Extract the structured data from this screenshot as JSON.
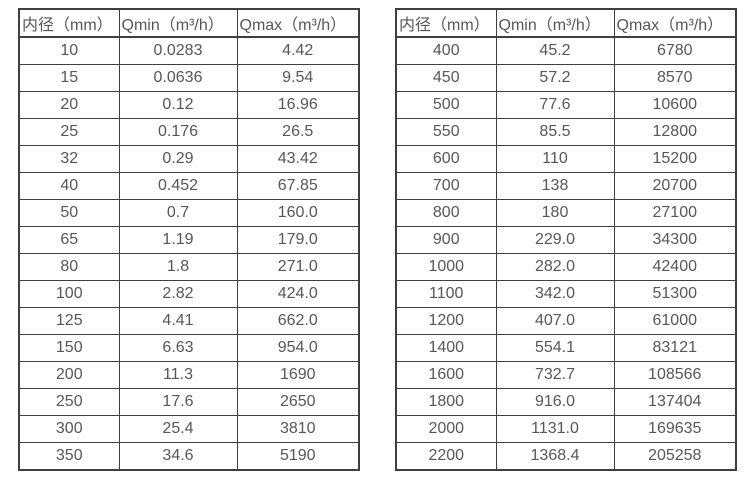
{
  "page": {
    "background": "#ffffff"
  },
  "colors": {
    "border": "#3f3f3f",
    "text": "#575757"
  },
  "chart_data": [
    {
      "type": "table",
      "columns": [
        "内径（mm）",
        "Qmin（m³/h）",
        "Qmax（m³/h）"
      ],
      "rows": [
        [
          "10",
          "0.0283",
          "4.42"
        ],
        [
          "15",
          "0.0636",
          "9.54"
        ],
        [
          "20",
          "0.12",
          "16.96"
        ],
        [
          "25",
          "0.176",
          "26.5"
        ],
        [
          "32",
          "0.29",
          "43.42"
        ],
        [
          "40",
          "0.452",
          "67.85"
        ],
        [
          "50",
          "0.7",
          "160.0"
        ],
        [
          "65",
          "1.19",
          "179.0"
        ],
        [
          "80",
          "1.8",
          "271.0"
        ],
        [
          "100",
          "2.82",
          "424.0"
        ],
        [
          "125",
          "4.41",
          "662.0"
        ],
        [
          "150",
          "6.63",
          "954.0"
        ],
        [
          "200",
          "11.3",
          "1690"
        ],
        [
          "250",
          "17.6",
          "2650"
        ],
        [
          "300",
          "25.4",
          "3810"
        ],
        [
          "350",
          "34.6",
          "5190"
        ]
      ]
    },
    {
      "type": "table",
      "columns": [
        "内径（mm）",
        "Qmin（m³/h）",
        "Qmax（m³/h）"
      ],
      "rows": [
        [
          "400",
          "45.2",
          "6780"
        ],
        [
          "450",
          "57.2",
          "8570"
        ],
        [
          "500",
          "77.6",
          "10600"
        ],
        [
          "550",
          "85.5",
          "12800"
        ],
        [
          "600",
          "110",
          "15200"
        ],
        [
          "700",
          "138",
          "20700"
        ],
        [
          "800",
          "180",
          "27100"
        ],
        [
          "900",
          "229.0",
          "34300"
        ],
        [
          "1000",
          "282.0",
          "42400"
        ],
        [
          "1100",
          "342.0",
          "51300"
        ],
        [
          "1200",
          "407.0",
          "61000"
        ],
        [
          "1400",
          "554.1",
          "83121"
        ],
        [
          "1600",
          "732.7",
          "108566"
        ],
        [
          "1800",
          "916.0",
          "137404"
        ],
        [
          "2000",
          "1131.0",
          "169635"
        ],
        [
          "2200",
          "1368.4",
          "205258"
        ]
      ]
    }
  ]
}
